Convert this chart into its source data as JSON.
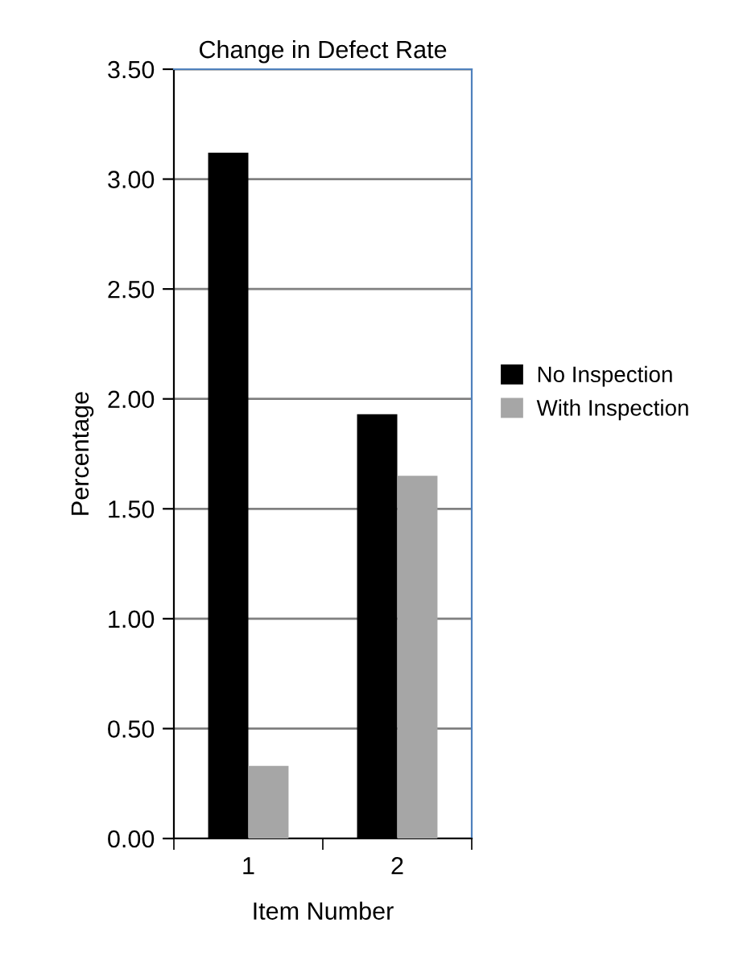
{
  "chart_data": {
    "type": "bar",
    "title": "Change in Defect Rate",
    "xlabel": "Item Number",
    "ylabel": "Percentage",
    "categories": [
      "1",
      "2"
    ],
    "series": [
      {
        "name": "No Inspection",
        "color": "#000000",
        "values": [
          3.12,
          1.93
        ]
      },
      {
        "name": "With Inspection",
        "color": "#a6a6a6",
        "values": [
          0.33,
          1.65
        ]
      }
    ],
    "ylim": [
      0,
      3.5
    ],
    "yticks": [
      {
        "value": 0,
        "label": "0.00"
      },
      {
        "value": 0.5,
        "label": "0.50"
      },
      {
        "value": 1,
        "label": "1.00"
      },
      {
        "value": 1.5,
        "label": "1.50"
      },
      {
        "value": 2,
        "label": "2.00"
      },
      {
        "value": 2.5,
        "label": "2.50"
      },
      {
        "value": 3,
        "label": "3.00"
      },
      {
        "value": 3.5,
        "label": "3.50"
      }
    ],
    "grid": "y",
    "legend": "right"
  }
}
